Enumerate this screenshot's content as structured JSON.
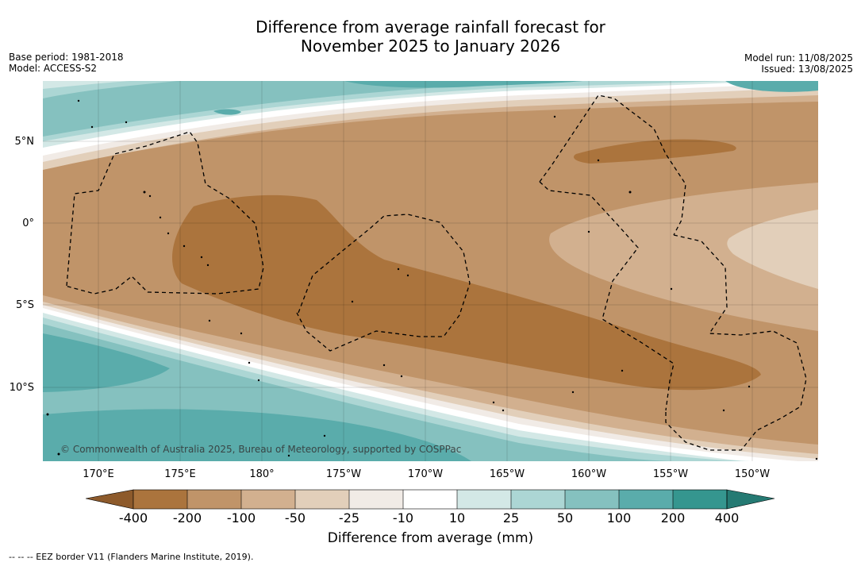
{
  "title": {
    "line1": "Difference from average rainfall forecast for",
    "line2": "November 2025 to January 2026"
  },
  "info_left": {
    "base_period": "Base period: 1981-2018",
    "model": "Model: ACCESS-S2"
  },
  "info_right": {
    "model_run": "Model run: 11/08/2025",
    "issued": "Issued: 13/08/2025"
  },
  "map": {
    "lat_labels": [
      "5°N",
      "0°",
      "5°S",
      "10°S"
    ],
    "lon_labels": [
      "170°E",
      "175°E",
      "180°",
      "175°W",
      "170°W",
      "165°W",
      "160°W",
      "155°W",
      "150°W"
    ],
    "copyright": "© Commonwealth of Australia 2025, Bureau of Meteorology, supported by COSPPac",
    "colors": {
      "neg400": "#8d5a2b",
      "neg200": "#ab743d",
      "neg100": "#c09469",
      "neg50": "#d2b08f",
      "neg25": "#e2cfba",
      "neg10": "#f1ebe6",
      "zero": "#ffffff",
      "pos10": "#d3e8e6",
      "pos25": "#acd6d4",
      "pos50": "#85c1bf",
      "pos100": "#5aacab",
      "pos200": "#35968f",
      "pos400": "#257a73"
    }
  },
  "colorbar": {
    "ticks": [
      "-400",
      "-200",
      "-100",
      "-50",
      "-25",
      "-10",
      "10",
      "25",
      "50",
      "100",
      "200",
      "400"
    ],
    "title": "Difference from average (mm)"
  },
  "footnote": "--  --  -- EEZ border V11 (Flanders Marine Institute, 2019)."
}
